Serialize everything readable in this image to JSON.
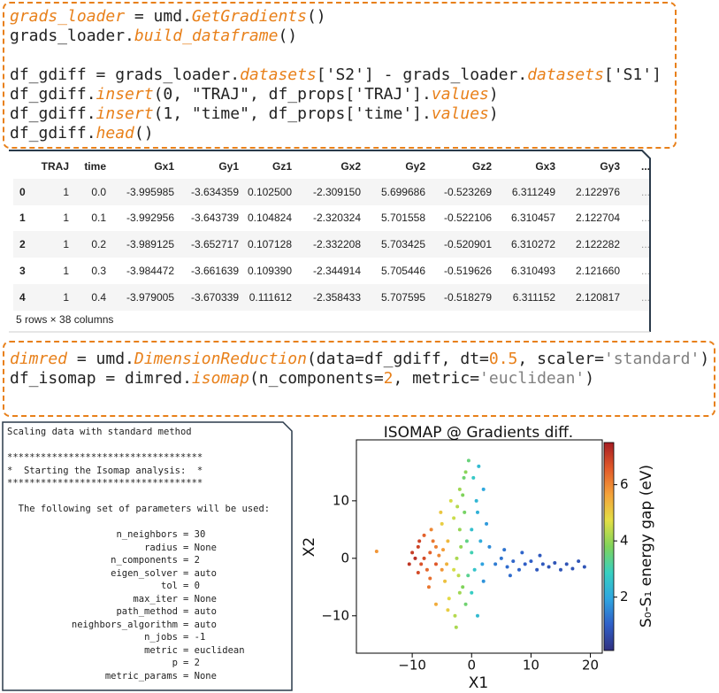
{
  "code_top": {
    "blocks": [
      [
        [
          {
            "text": "grads_loader",
            "color": "#e8801a",
            "italic": true
          },
          {
            "text": " = umd."
          },
          {
            "text": "GetGradients",
            "color": "#e8801a",
            "italic": true
          },
          {
            "text": "()"
          }
        ],
        [
          {
            "text": "grads_loader."
          },
          {
            "text": "build_dataframe",
            "color": "#e8801a",
            "italic": true
          },
          {
            "text": "()"
          }
        ]
      ],
      [
        [
          {
            "text": "df_gdiff = grads_loader."
          },
          {
            "text": "datasets",
            "color": "#e8801a",
            "italic": true
          },
          {
            "text": "['S2'] - grads_loader."
          },
          {
            "text": "datasets",
            "color": "#e8801a",
            "italic": true
          },
          {
            "text": "['S1']"
          }
        ],
        [
          {
            "text": "df_gdiff."
          },
          {
            "text": "insert",
            "color": "#e8801a",
            "italic": true
          },
          {
            "text": "(0, \"TRAJ\", df_props['TRAJ']."
          },
          {
            "text": "values",
            "color": "#e8801a",
            "italic": true
          },
          {
            "text": ")"
          }
        ],
        [
          {
            "text": "df_gdiff."
          },
          {
            "text": "insert",
            "color": "#e8801a",
            "italic": true
          },
          {
            "text": "(1, \"time\", df_props['time']."
          },
          {
            "text": "values",
            "color": "#e8801a",
            "italic": true
          },
          {
            "text": ")"
          }
        ],
        [
          {
            "text": "df_gdiff."
          },
          {
            "text": "head",
            "color": "#e8801a",
            "italic": true
          },
          {
            "text": "()"
          }
        ]
      ]
    ]
  },
  "table": {
    "headers": [
      "TRAJ",
      "time",
      "Gx1",
      "Gy1",
      "Gz1",
      "Gx2",
      "Gy2",
      "Gz2",
      "Gx3",
      "Gy3",
      "..."
    ],
    "rows": [
      {
        "index": "0",
        "cells": [
          "1",
          "0.0",
          "-3.995985",
          "-3.634359",
          "0.102500",
          "-2.309150",
          "5.699686",
          "-0.523269",
          "6.311249",
          "2.122976",
          "..."
        ]
      },
      {
        "index": "1",
        "cells": [
          "1",
          "0.1",
          "-3.992956",
          "-3.643739",
          "0.104824",
          "-2.320324",
          "5.701558",
          "-0.522106",
          "6.310457",
          "2.122704",
          "..."
        ]
      },
      {
        "index": "2",
        "cells": [
          "1",
          "0.2",
          "-3.989125",
          "-3.652717",
          "0.107128",
          "-2.332208",
          "5.703425",
          "-0.520901",
          "6.310272",
          "2.122282",
          "..."
        ]
      },
      {
        "index": "3",
        "cells": [
          "1",
          "0.3",
          "-3.984472",
          "-3.661639",
          "0.109390",
          "-2.344914",
          "5.705446",
          "-0.519626",
          "6.310493",
          "2.121660",
          "..."
        ]
      },
      {
        "index": "4",
        "cells": [
          "1",
          "0.4",
          "-3.979005",
          "-3.670339",
          "0.111612",
          "-2.358433",
          "5.707595",
          "-0.518279",
          "6.311152",
          "2.120817",
          "..."
        ]
      }
    ],
    "footer": "5 rows × 38 columns"
  },
  "code_bottom": {
    "blocks": [
      [
        [
          {
            "text": "dimred",
            "color": "#e8801a",
            "italic": true
          },
          {
            "text": " = umd."
          },
          {
            "text": "DimensionReduction",
            "color": "#e8801a",
            "italic": true
          },
          {
            "text": "(data=df_gdiff, dt="
          },
          {
            "text": "0.5",
            "color": "#e8801a"
          },
          {
            "text": ", scaler="
          },
          {
            "text": "'standard'",
            "color": "#808080"
          },
          {
            "text": ")"
          }
        ],
        [
          {
            "text": "df_isomap = dimred."
          },
          {
            "text": "isomap",
            "color": "#e8801a",
            "italic": true
          },
          {
            "text": "(n_components="
          },
          {
            "text": "2",
            "color": "#e8801a"
          },
          {
            "text": ", metric="
          },
          {
            "text": "'euclidean'",
            "color": "#808080"
          },
          {
            "text": ")"
          }
        ]
      ]
    ]
  },
  "output": {
    "blocks": [
      [
        "Scaling data with standard method"
      ],
      [
        "***********************************",
        "*  Starting the Isomap analysis:  *",
        "***********************************"
      ],
      [
        "  The following set of parameters will be used:"
      ]
    ],
    "params": [
      {
        "key": "n_neighbors",
        "value": "= 30"
      },
      {
        "key": "radius",
        "value": "= None"
      },
      {
        "key": "n_components",
        "value": "= 2"
      },
      {
        "key": "eigen_solver",
        "value": "= auto"
      },
      {
        "key": "tol",
        "value": "= 0"
      },
      {
        "key": "max_iter",
        "value": "= None"
      },
      {
        "key": "path_method",
        "value": "= auto"
      },
      {
        "key": "neighbors_algorithm",
        "value": "= auto"
      },
      {
        "key": "n_jobs",
        "value": "= -1"
      },
      {
        "key": "metric",
        "value": "= euclidean"
      },
      {
        "key": "p",
        "value": "= 2"
      },
      {
        "key": "metric_params",
        "value": "= None"
      }
    ]
  },
  "chart_data": {
    "type": "scatter",
    "title": "ISOMAP @ Gradients diff.",
    "x_label": "X1",
    "y_label": "X2",
    "colorbar_label": "S₀-S₁ energy gap (eV)",
    "xlim": [
      -19.4,
      22
    ],
    "ylim": [
      -16.5,
      20.6
    ],
    "xticks": [
      {
        "value": -10,
        "label": "−10"
      },
      0,
      10,
      20
    ],
    "yticks": [
      {
        "value": -10,
        "label": "−10"
      },
      0,
      10
    ],
    "clim": [
      0.1,
      7.5
    ],
    "cticks": [
      2,
      4,
      6
    ],
    "colormap": [
      "#30307f",
      "#2f5fc8",
      "#2fa6e0",
      "#38d0c0",
      "#7fd35a",
      "#e3df45",
      "#f4a23a",
      "#e25a2a",
      "#a51c22"
    ],
    "x": [
      -8,
      -7,
      -6,
      -9,
      -7.5,
      -6.5,
      -8.5,
      -5.5,
      -10,
      -7,
      -6,
      -9,
      -8,
      -5,
      -10.5,
      -6.8,
      -7.2,
      -4.8,
      -8.8,
      -9.5,
      -4.5,
      -5,
      -4,
      -3.8,
      -5.2,
      -4.2,
      -6,
      -3.5,
      -4,
      -16,
      -2.5,
      -2,
      -1.5,
      -2,
      -1,
      -2.8,
      -1.2,
      -0.5,
      -2.2,
      -1.8,
      -3,
      -1,
      -2.6,
      -0.8,
      -1.5,
      -2,
      -3,
      -0.6,
      -1.3,
      -2.4,
      0,
      1,
      2,
      0.5,
      1.5,
      0,
      1,
      2.5,
      0.8,
      1.8,
      3,
      0.3,
      2,
      1.2,
      0,
      4,
      5,
      6,
      7,
      8,
      9,
      10,
      11,
      12,
      13,
      14,
      15,
      16,
      17,
      18,
      19,
      5.5,
      8.5,
      6.5,
      11.5
    ],
    "y": [
      0,
      1,
      -1,
      2,
      -2,
      3,
      -1,
      0.5,
      1,
      -3.5,
      2,
      -2.5,
      4,
      -2,
      -1,
      5,
      -5,
      1.5,
      3,
      0,
      -4,
      6,
      3,
      -7,
      8,
      -1,
      -8,
      10,
      -9,
      1.2,
      0,
      5,
      -5,
      12,
      15,
      -10,
      8,
      17,
      -3,
      2,
      7,
      -8,
      -12,
      3,
      11,
      -6,
      -2,
      -3,
      14,
      9,
      5,
      8,
      12,
      -2,
      3,
      -6,
      -10,
      6,
      10,
      -1,
      2,
      14,
      -4,
      16,
      1,
      -1,
      0,
      -1.5,
      -0.5,
      -2,
      -1,
      -0.5,
      -2,
      -1,
      -1.5,
      -0.8,
      -2,
      -1,
      -1.8,
      -0.5,
      -1.5,
      1.5,
      1,
      -3,
      0.5
    ],
    "c": [
      6.8,
      6.5,
      6.6,
      6.9,
      6.4,
      6.2,
      6.7,
      6.0,
      7.0,
      6.3,
      6.1,
      6.8,
      6.5,
      5.8,
      7.1,
      6.0,
      6.2,
      5.7,
      6.9,
      7.2,
      5.2,
      5.0,
      5.3,
      4.8,
      5.1,
      5.4,
      5.5,
      4.6,
      5.0,
      5.8,
      4.2,
      4.0,
      3.8,
      4.1,
      3.9,
      4.3,
      3.7,
      3.5,
      4.4,
      4.0,
      4.5,
      3.6,
      4.2,
      3.4,
      3.8,
      4.1,
      4.6,
      3.3,
      3.6,
      4.3,
      2.5,
      2.2,
      2.0,
      2.6,
      2.1,
      2.8,
      2.4,
      1.8,
      2.3,
      1.9,
      1.6,
      2.7,
      1.7,
      2.4,
      3.0,
      1.4,
      1.3,
      1.2,
      1.1,
      1.1,
      1.0,
      1.0,
      0.9,
      0.9,
      0.8,
      0.8,
      0.8,
      0.8,
      0.8,
      0.8,
      0.8,
      1.3,
      1.1,
      1.2,
      0.9
    ]
  }
}
